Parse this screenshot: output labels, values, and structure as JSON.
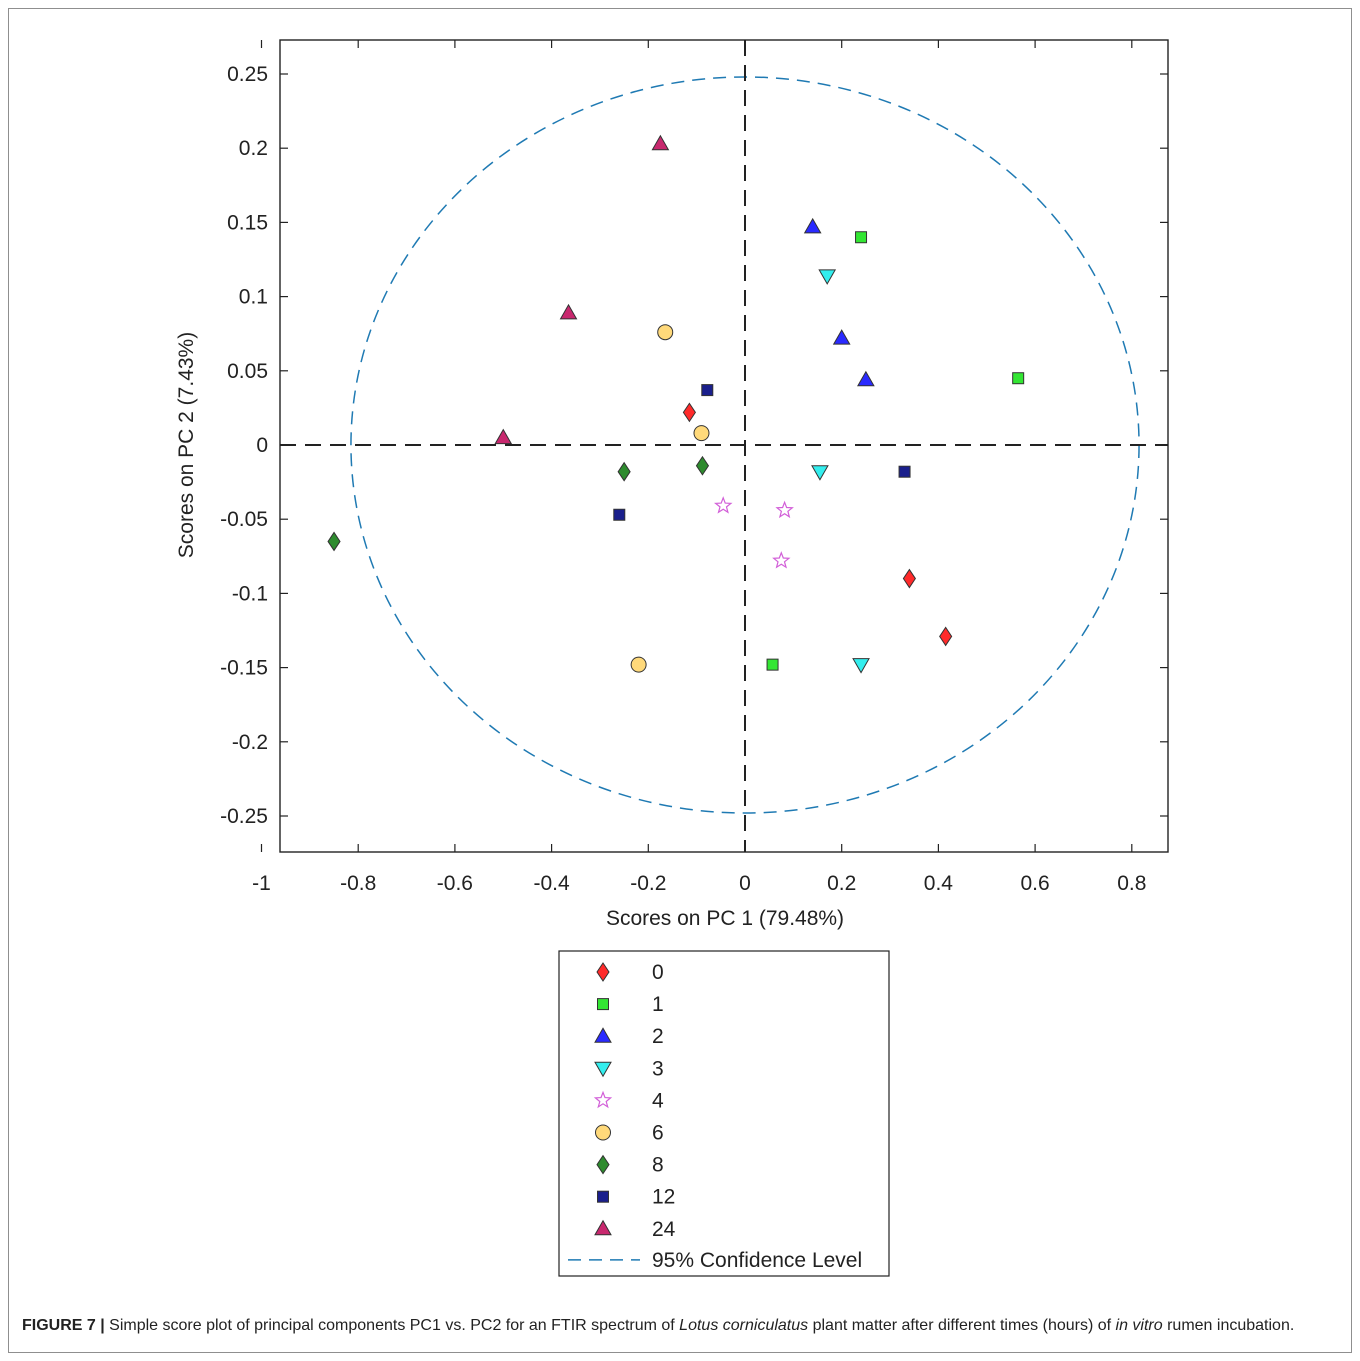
{
  "chart_data": {
    "type": "scatter",
    "xlabel": "Scores on PC 1 (79.48%)",
    "ylabel": "Scores on PC 2 (7.43%)",
    "xlim": [
      -1,
      0.9
    ],
    "ylim": [
      -0.275,
      0.27
    ],
    "x_ticks": [
      "-1",
      "-0.8",
      "-0.6",
      "-0.4",
      "-0.2",
      "0",
      "0.2",
      "0.4",
      "0.6",
      "0.8"
    ],
    "y_ticks": [
      "0.25",
      "0.2",
      "0.15",
      "0.1",
      "0.05",
      "0",
      "-0.05",
      "-0.1",
      "-0.15",
      "-0.2",
      "-0.25"
    ],
    "grid": false,
    "reference_lines": {
      "x": 0,
      "y": 0,
      "style": "dashed"
    },
    "confidence_ellipse": {
      "label": "95% Confidence Level",
      "center": [
        0,
        0
      ],
      "radius_x": 0.815,
      "radius_y": 0.248,
      "color": "#1f7ab3"
    },
    "legend_position": "below plot",
    "series": [
      {
        "name": "0",
        "marker": "diamond",
        "color": "#ff2a2a",
        "points": [
          [
            -0.115,
            0.022
          ],
          [
            0.34,
            -0.09
          ],
          [
            0.415,
            -0.129
          ]
        ]
      },
      {
        "name": "1",
        "marker": "square",
        "color": "#33e633",
        "points": [
          [
            0.24,
            0.14
          ],
          [
            0.565,
            0.045
          ],
          [
            0.057,
            -0.148
          ]
        ]
      },
      {
        "name": "2",
        "marker": "triangle-up",
        "color": "#2a2aff",
        "points": [
          [
            0.14,
            0.147
          ],
          [
            0.2,
            0.072
          ],
          [
            0.25,
            0.044
          ]
        ]
      },
      {
        "name": "3",
        "marker": "triangle-down",
        "color": "#33eeee",
        "points": [
          [
            0.17,
            0.114
          ],
          [
            0.155,
            -0.018
          ],
          [
            0.24,
            -0.148
          ]
        ]
      },
      {
        "name": "4",
        "marker": "star",
        "color": "#d25fd8",
        "points": [
          [
            -0.045,
            -0.041
          ],
          [
            0.082,
            -0.044
          ],
          [
            0.075,
            -0.078
          ]
        ]
      },
      {
        "name": "6",
        "marker": "circle",
        "color": "#ffd97a",
        "points": [
          [
            -0.165,
            0.076
          ],
          [
            -0.09,
            0.008
          ],
          [
            -0.22,
            -0.148
          ]
        ]
      },
      {
        "name": "8",
        "marker": "diamond",
        "color": "#2e8b2e",
        "points": [
          [
            -0.25,
            -0.018
          ],
          [
            -0.088,
            -0.014
          ],
          [
            -0.85,
            -0.065
          ]
        ]
      },
      {
        "name": "12",
        "marker": "square",
        "color": "#1a1f8c",
        "points": [
          [
            -0.078,
            0.037
          ],
          [
            0.33,
            -0.018
          ],
          [
            -0.26,
            -0.047
          ]
        ]
      },
      {
        "name": "24",
        "marker": "triangle-up",
        "color": "#c8286e",
        "points": [
          [
            -0.175,
            0.203
          ],
          [
            -0.365,
            0.089
          ],
          [
            -0.5,
            0.005
          ]
        ]
      }
    ]
  },
  "caption": {
    "label": "FIGURE 7 |",
    "part1": " Simple score plot of principal components PC1 vs. PC2 for an FTIR spectrum of ",
    "species": "Lotus corniculatus",
    "part2": " plant matter after different times (hours) of ",
    "method": "in vitro",
    "part3": " rumen incubation."
  }
}
